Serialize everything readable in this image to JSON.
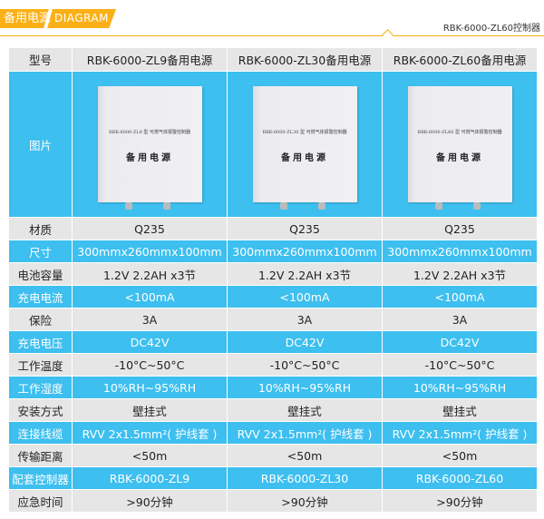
{
  "header": {
    "title": "备用电源",
    "subtitle": "DIAGRAM",
    "right_label": "RBK-6000-ZL60控制器"
  },
  "table": {
    "header": [
      "型号",
      "RBK-6000-ZL9备用电源",
      "RBK-6000-ZL30备用电源",
      "RBK-6000-ZL60备用电源"
    ],
    "image_label": "图片",
    "products": [
      {
        "plate": "RBK-6000-ZL9 型 可燃气体报警控制器",
        "name": "备用电源"
      },
      {
        "plate": "RBK-6000-ZL30 型 可燃气体报警控制器",
        "name": "备用电源"
      },
      {
        "plate": "RBK-6000-ZL60 型 可燃气体报警控制器",
        "name": "备用电源"
      }
    ],
    "rows": [
      {
        "label": "材质",
        "values": [
          "Q235",
          "Q235",
          "Q235"
        ],
        "style": "gray"
      },
      {
        "label": "尺寸",
        "values": [
          "300mmx260mmx100mm",
          "300mmx260mmx100mm",
          "300mmx260mmx100mm"
        ],
        "style": "blue"
      },
      {
        "label": "电池容量",
        "values": [
          "1.2V 2.2AH x3节",
          "1.2V 2.2AH x3节",
          "1.2V 2.2AH x3节"
        ],
        "style": "gray"
      },
      {
        "label": "充电电流",
        "values": [
          "<100mA",
          "<100mA",
          "<100mA"
        ],
        "style": "blue"
      },
      {
        "label": "保险",
        "values": [
          "3A",
          "3A",
          "3A"
        ],
        "style": "gray"
      },
      {
        "label": "充电电压",
        "values": [
          "DC42V",
          "DC42V",
          "DC42V"
        ],
        "style": "blue"
      },
      {
        "label": "工作温度",
        "values": [
          "-10°C~50°C",
          "-10°C~50°C",
          "-10°C~50°C"
        ],
        "style": "gray"
      },
      {
        "label": "工作湿度",
        "values": [
          "10%RH~95%RH",
          "10%RH~95%RH",
          "10%RH~95%RH"
        ],
        "style": "blue"
      },
      {
        "label": "安装方式",
        "values": [
          "壁挂式",
          "壁挂式",
          "壁挂式"
        ],
        "style": "gray"
      },
      {
        "label": "连接线缆",
        "values": [
          "RVV 2x1.5mm²( 护线套 )",
          "RVV 2x1.5mm²( 护线套 )",
          "RVV 2x1.5mm²( 护线套 )"
        ],
        "style": "blue"
      },
      {
        "label": "传输距离",
        "values": [
          "<50m",
          "<50m",
          "<50m"
        ],
        "style": "gray"
      },
      {
        "label": "配套控制器",
        "values": [
          "RBK-6000-ZL9",
          "RBK-6000-ZL30",
          "RBK-6000-ZL60"
        ],
        "style": "blue"
      },
      {
        "label": "应急时间",
        "values": [
          ">90分钟",
          ">90分钟",
          ">90分钟"
        ],
        "style": "gray"
      }
    ]
  },
  "colors": {
    "accent": "#fbb017",
    "blue": "#3dbfef",
    "gray": "#e6e6e6"
  }
}
